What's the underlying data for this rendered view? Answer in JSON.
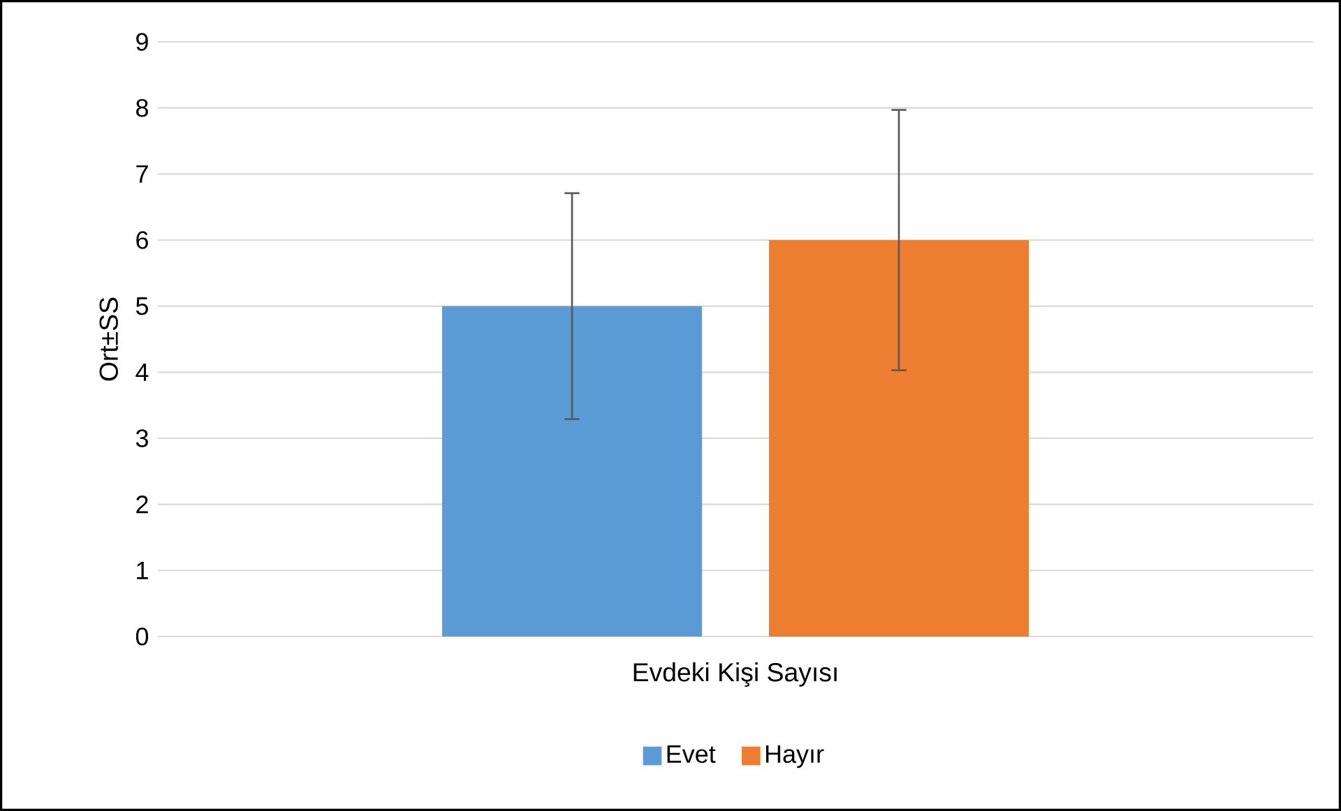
{
  "chart_data": {
    "type": "bar",
    "xlabel": "Evdeki Kişi Sayısı",
    "ylabel": "Ort±SS",
    "categories": [
      null
    ],
    "series": [
      {
        "name": "Evet",
        "color": "#5b9bd5",
        "values": [
          5
        ],
        "errors": [
          1.71
        ]
      },
      {
        "name": "Hayır",
        "color": "#ed7d31",
        "values": [
          6
        ],
        "errors": [
          1.97
        ]
      }
    ],
    "ylim": [
      0,
      9
    ],
    "yticks": [
      0,
      1,
      2,
      3,
      4,
      5,
      6,
      7,
      8,
      9
    ],
    "grid": "y",
    "legend": "bottom"
  }
}
